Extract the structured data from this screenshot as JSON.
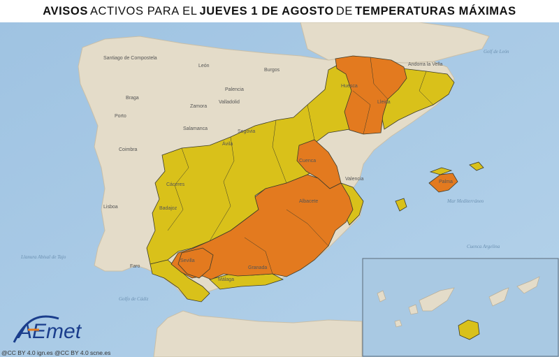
{
  "title": {
    "p1": "AVISOS",
    "p2": "ACTIVOS PARA EL",
    "p3": "JUEVES 1 DE AGOSTO",
    "p4": "DE",
    "p5": "TEMPERATURAS MÁXIMAS"
  },
  "legend_colors": {
    "yellow": "#d9c11a",
    "orange": "#e37a1f",
    "land": "#e4dcc9",
    "sea": "#a9c9e3"
  },
  "logo": {
    "text": "AEmet"
  },
  "credits": "@CC BY 4.0 ign.es  @CC BY 4.0 scne.es",
  "places": {
    "santiago": "Santiago de Compostela",
    "leon": "León",
    "burgos": "Burgos",
    "palencia": "Palencia",
    "valladolid": "Valladolid",
    "zamora": "Zamora",
    "salamanca": "Salamanca",
    "segovia": "Segovia",
    "avila": "Ávila",
    "huesca": "Huesca",
    "lleida": "Lleida",
    "andorra": "Andorra la Vella",
    "cuenca": "Cuenca",
    "valencia": "Valencia",
    "albacete": "Albacete",
    "caceres": "Cáceres",
    "badajoz": "Badajoz",
    "sevilla": "Sevilla",
    "granada": "Granada",
    "malaga": "Málaga",
    "palma": "Palma",
    "lisboa": "Lisboa",
    "porto": "Porto",
    "coimbra": "Coimbra",
    "braga": "Braga",
    "faro": "Faro"
  },
  "seas": {
    "sea1": "Golf de León",
    "sea2": "Mar Mediterráneo",
    "sea3": "Cuenca Argelina",
    "sea4": "Llanura Abisal de Tajo",
    "sea5": "Golfo de Cádiz"
  }
}
